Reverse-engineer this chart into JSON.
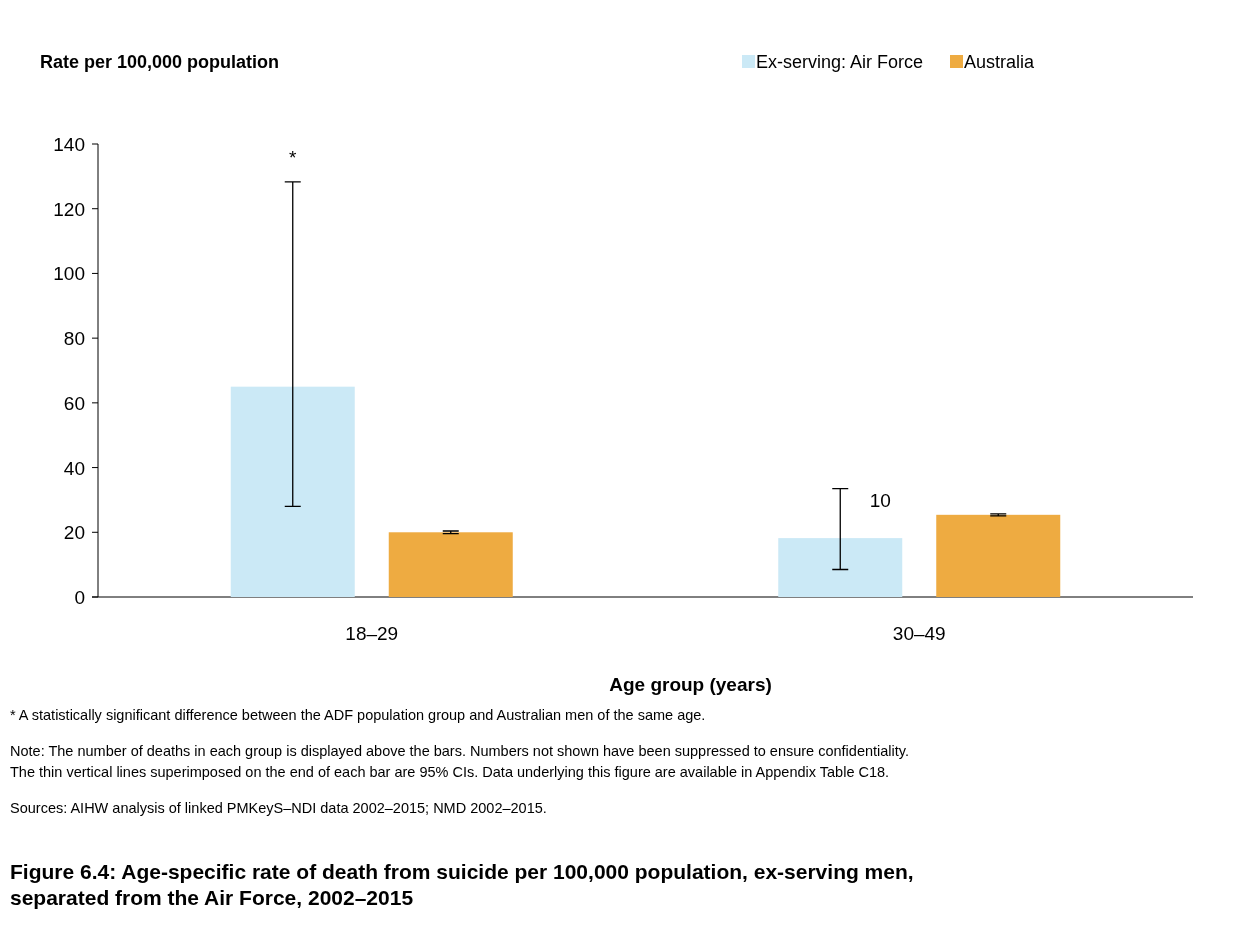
{
  "chart_data": {
    "type": "bar",
    "title": "Figure 6.4: Age-specific rate of death from suicide per 100,000 population, ex-serving men, separated from the Air Force, 2002–2015",
    "ylabel": "Rate per 100,000 population",
    "xlabel": "Age group (years)",
    "categories": [
      "18–29",
      "30–49"
    ],
    "series": [
      {
        "name": "Ex-serving: Air Force",
        "color": "#cbe9f6",
        "values": [
          65,
          18.2
        ],
        "errors": [
          [
            28,
            128.3
          ],
          [
            8.5,
            33.5
          ]
        ]
      },
      {
        "name": "Australia",
        "color": "#eeab41",
        "values": [
          20,
          25.4
        ],
        "errors": [
          [
            19.6,
            20.4
          ],
          [
            25.1,
            25.7
          ]
        ]
      }
    ],
    "ylim": [
      0,
      140
    ],
    "yticks": [
      0,
      20,
      40,
      60,
      80,
      100,
      120,
      140
    ],
    "legend": "top right",
    "annotations": [
      "*",
      "10",
      "* A statistically significant difference between the ADF population group and Australian men of the same age.",
      "Note: The number of deaths in each group is displayed above the bars. Numbers not shown have been suppressed to ensure confidentiality. The thin vertical lines superimposed on the end of each bar are 95% CIs. Data underlying this figure are available in Appendix Table C18.",
      "Sources: AIHW analysis of linked PMKeyS–NDI data 2002–2015; NMD 2002–2015."
    ]
  }
}
